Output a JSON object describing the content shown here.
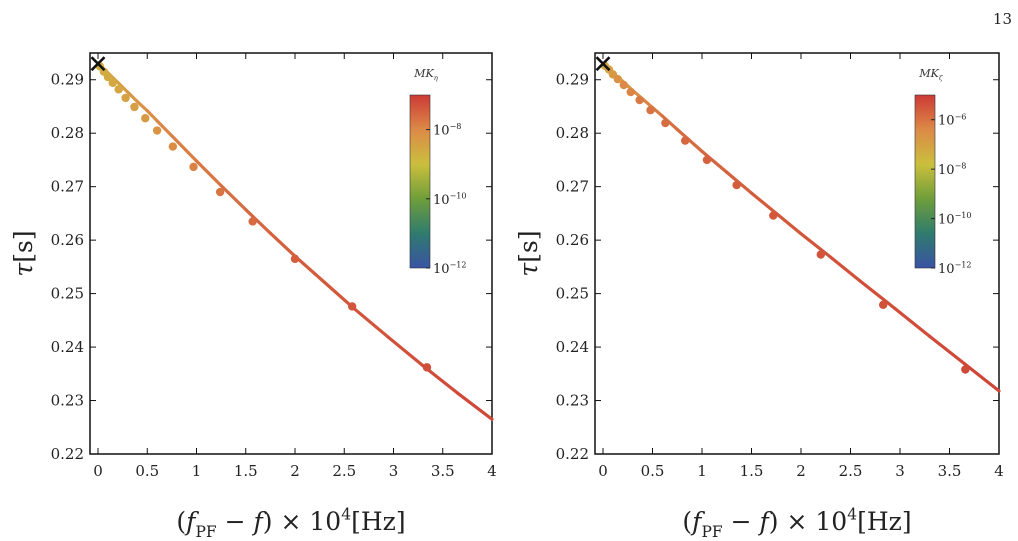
{
  "page_number": "13",
  "chart_data": [
    {
      "type": "line",
      "xlabel": "(f_PF − f) × 10^4[Hz]",
      "ylabel": "τ[s]",
      "xlim": [
        0,
        4
      ],
      "ylim": [
        0.22,
        0.295
      ],
      "x_ticks": [
        "0",
        "0.5",
        "1",
        "1.5",
        "2",
        "2.5",
        "3",
        "3.5",
        "4"
      ],
      "y_ticks": [
        "0.22",
        "0.23",
        "0.24",
        "0.25",
        "0.26",
        "0.27",
        "0.28",
        "0.29"
      ],
      "marker": {
        "symbol": "×",
        "x": 0.0,
        "y": 0.293
      },
      "colorbar": {
        "title": "MK_η",
        "log_range": [
          -12,
          -7
        ],
        "ticks": [
          "10^−12",
          "10^−10",
          "10^−8"
        ]
      },
      "curve": {
        "x": [
          0.0,
          0.05,
          0.1,
          0.2,
          0.3,
          0.4,
          0.5,
          0.6,
          0.75,
          1.0,
          1.25,
          1.5,
          1.75,
          2.0,
          2.3,
          2.6,
          2.95,
          3.3,
          3.65,
          4.0
        ],
        "y": [
          0.293,
          0.2922,
          0.2913,
          0.2895,
          0.2877,
          0.2859,
          0.2842,
          0.2823,
          0.2795,
          0.2748,
          0.2702,
          0.2657,
          0.2613,
          0.257,
          0.2521,
          0.2472,
          0.2418,
          0.2365,
          0.2314,
          0.2265
        ],
        "log_mk": [
          -8.7,
          -8.6,
          -8.5,
          -8.4,
          -8.3,
          -8.2,
          -8.1,
          -8.0,
          -7.9,
          -7.8,
          -7.7,
          -7.6,
          -7.5,
          -7.45,
          -7.4,
          -7.35,
          -7.3,
          -7.25,
          -7.2,
          -7.15
        ]
      },
      "points": {
        "x": [
          0.02,
          0.06,
          0.1,
          0.15,
          0.21,
          0.28,
          0.37,
          0.48,
          0.6,
          0.76,
          0.97,
          1.24,
          1.57,
          2.0,
          2.58,
          3.34
        ],
        "y": [
          0.2925,
          0.2915,
          0.2905,
          0.2894,
          0.2882,
          0.2866,
          0.2849,
          0.2828,
          0.2805,
          0.2775,
          0.2737,
          0.269,
          0.2635,
          0.2565,
          0.2476,
          0.2362
        ],
        "log_mk": [
          -8.7,
          -8.65,
          -8.6,
          -8.55,
          -8.5,
          -8.45,
          -8.4,
          -8.3,
          -8.2,
          -8.05,
          -7.9,
          -7.75,
          -7.6,
          -7.45,
          -7.35,
          -7.25
        ]
      }
    },
    {
      "type": "line",
      "xlabel": "(f_PF − f) × 10^4[Hz]",
      "ylabel": "τ[s]",
      "xlim": [
        0,
        4
      ],
      "ylim": [
        0.22,
        0.295
      ],
      "x_ticks": [
        "0",
        "0.5",
        "1",
        "1.5",
        "2",
        "2.5",
        "3",
        "3.5",
        "4"
      ],
      "y_ticks": [
        "0.22",
        "0.23",
        "0.24",
        "0.25",
        "0.26",
        "0.27",
        "0.28",
        "0.29"
      ],
      "marker": {
        "symbol": "×",
        "x": 0.0,
        "y": 0.293
      },
      "colorbar": {
        "title": "MK_ζ",
        "log_range": [
          -12,
          -5
        ],
        "ticks": [
          "10^−12",
          "10^−10",
          "10^−8",
          "10^−6"
        ]
      },
      "curve": {
        "x": [
          0.0,
          0.05,
          0.1,
          0.2,
          0.3,
          0.4,
          0.5,
          0.6,
          0.75,
          1.0,
          1.25,
          1.5,
          1.75,
          2.0,
          2.3,
          2.6,
          2.95,
          3.3,
          3.65,
          4.0
        ],
        "y": [
          0.293,
          0.2922,
          0.2913,
          0.2897,
          0.288,
          0.2864,
          0.2848,
          0.2832,
          0.2807,
          0.2766,
          0.2727,
          0.2688,
          0.265,
          0.2612,
          0.2568,
          0.2523,
          0.2472,
          0.242,
          0.2369,
          0.2318
        ],
        "log_mk": [
          -7.4,
          -7.2,
          -7.0,
          -6.8,
          -6.6,
          -6.4,
          -6.2,
          -6.0,
          -5.9,
          -5.8,
          -5.7,
          -5.6,
          -5.55,
          -5.5,
          -5.45,
          -5.4,
          -5.35,
          -5.3,
          -5.25,
          -5.2
        ]
      },
      "points": {
        "x": [
          0.02,
          0.06,
          0.1,
          0.15,
          0.21,
          0.28,
          0.37,
          0.48,
          0.63,
          0.83,
          1.05,
          1.35,
          1.72,
          2.2,
          2.83,
          3.66
        ],
        "y": [
          0.2926,
          0.2919,
          0.291,
          0.2901,
          0.289,
          0.2877,
          0.2862,
          0.2843,
          0.2819,
          0.2786,
          0.275,
          0.2703,
          0.2646,
          0.2573,
          0.2479,
          0.2358
        ],
        "log_mk": [
          -7.2,
          -7.0,
          -6.8,
          -6.6,
          -6.4,
          -6.3,
          -6.1,
          -6.0,
          -5.9,
          -5.8,
          -5.7,
          -5.6,
          -5.5,
          -5.45,
          -5.4,
          -5.3
        ]
      }
    }
  ]
}
